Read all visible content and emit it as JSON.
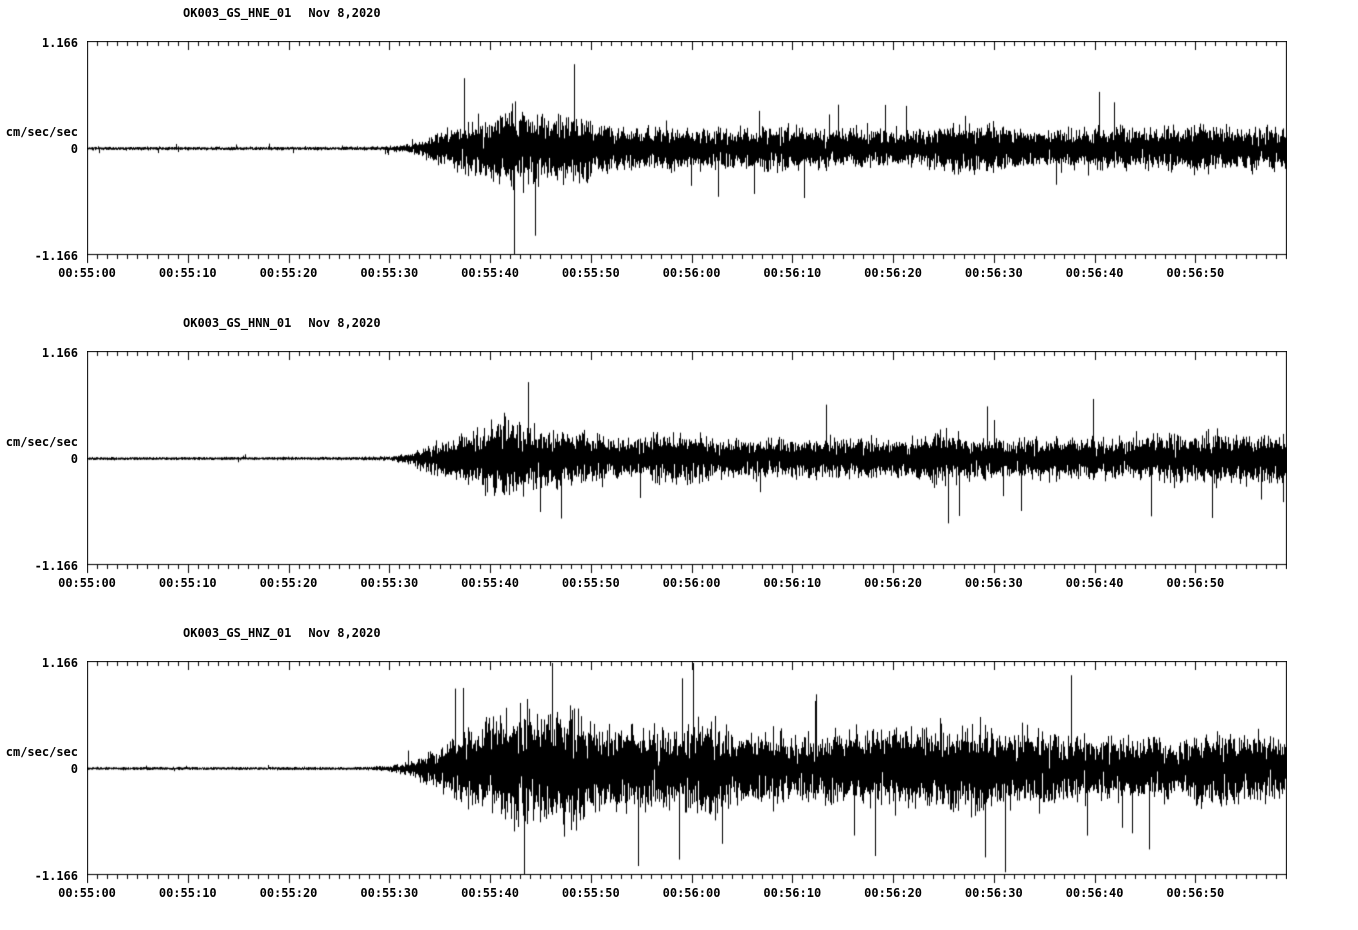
{
  "page": {
    "background": "#ffffff",
    "trace_color": "#000000"
  },
  "chart_data": [
    {
      "type": "line",
      "title": "OK003_GS_HNE_01",
      "date": "Nov 8,2020",
      "ylabel": "cm/sec/sec",
      "ylim": [
        -1.166,
        1.166
      ],
      "ytick_labels": [
        "1.166",
        "0",
        "-1.166"
      ],
      "xticks": [
        "00:55:00",
        "00:55:10",
        "00:55:20",
        "00:55:30",
        "00:55:40",
        "00:55:50",
        "00:56:00",
        "00:56:10",
        "00:56:20",
        "00:56:30",
        "00:56:40",
        "00:56:50"
      ],
      "duration_s": 119,
      "major_tick_s": 10,
      "minor_tick_s": 1,
      "envelope_step_s": 2,
      "seed": 42,
      "envelope": [
        0.025,
        0.025,
        0.025,
        0.025,
        0.025,
        0.025,
        0.025,
        0.025,
        0.025,
        0.025,
        0.025,
        0.025,
        0.025,
        0.025,
        0.028,
        0.035,
        0.06,
        0.18,
        0.3,
        0.38,
        0.5,
        0.55,
        0.48,
        0.42,
        0.55,
        0.38,
        0.33,
        0.3,
        0.3,
        0.32,
        0.3,
        0.28,
        0.3,
        0.28,
        0.3,
        0.32,
        0.28,
        0.27,
        0.28,
        0.28,
        0.3,
        0.27,
        0.28,
        0.35,
        0.38,
        0.35,
        0.3,
        0.28,
        0.3,
        0.28,
        0.3,
        0.3,
        0.32,
        0.3,
        0.33,
        0.35,
        0.33,
        0.3,
        0.32,
        0.3
      ]
    },
    {
      "type": "line",
      "title": "OK003_GS_HNN_01",
      "date": "Nov 8,2020",
      "ylabel": "cm/sec/sec",
      "ylim": [
        -1.166,
        1.166
      ],
      "ytick_labels": [
        "1.166",
        "0",
        "-1.166"
      ],
      "xticks": [
        "00:55:00",
        "00:55:10",
        "00:55:20",
        "00:55:30",
        "00:55:40",
        "00:55:50",
        "00:56:00",
        "00:56:10",
        "00:56:20",
        "00:56:30",
        "00:56:40",
        "00:56:50"
      ],
      "duration_s": 119,
      "major_tick_s": 10,
      "minor_tick_s": 1,
      "envelope_step_s": 2,
      "seed": 1337,
      "envelope": [
        0.022,
        0.022,
        0.022,
        0.022,
        0.022,
        0.022,
        0.022,
        0.022,
        0.022,
        0.022,
        0.022,
        0.022,
        0.022,
        0.022,
        0.026,
        0.032,
        0.08,
        0.22,
        0.3,
        0.35,
        0.5,
        0.55,
        0.45,
        0.4,
        0.38,
        0.35,
        0.3,
        0.28,
        0.3,
        0.35,
        0.35,
        0.3,
        0.3,
        0.28,
        0.28,
        0.28,
        0.27,
        0.28,
        0.27,
        0.28,
        0.28,
        0.3,
        0.4,
        0.35,
        0.3,
        0.3,
        0.28,
        0.28,
        0.3,
        0.28,
        0.3,
        0.3,
        0.32,
        0.33,
        0.35,
        0.35,
        0.38,
        0.35,
        0.33,
        0.35
      ]
    },
    {
      "type": "line",
      "title": "OK003_GS_HNZ_01",
      "date": "Nov 8,2020",
      "ylabel": "cm/sec/sec",
      "ylim": [
        -1.166,
        1.166
      ],
      "ytick_labels": [
        "1.166",
        "0",
        "-1.166"
      ],
      "xticks": [
        "00:55:00",
        "00:55:10",
        "00:55:20",
        "00:55:30",
        "00:55:40",
        "00:55:50",
        "00:56:00",
        "00:56:10",
        "00:56:20",
        "00:56:30",
        "00:56:40",
        "00:56:50"
      ],
      "duration_s": 119,
      "major_tick_s": 10,
      "minor_tick_s": 1,
      "envelope_step_s": 2,
      "seed": 2020,
      "envelope": [
        0.022,
        0.022,
        0.022,
        0.022,
        0.022,
        0.022,
        0.022,
        0.022,
        0.022,
        0.022,
        0.022,
        0.022,
        0.022,
        0.022,
        0.028,
        0.04,
        0.1,
        0.25,
        0.4,
        0.55,
        0.7,
        0.75,
        0.8,
        0.75,
        0.78,
        0.65,
        0.6,
        0.62,
        0.55,
        0.55,
        0.6,
        0.7,
        0.55,
        0.55,
        0.5,
        0.5,
        0.48,
        0.5,
        0.55,
        0.55,
        0.6,
        0.55,
        0.6,
        0.6,
        0.6,
        0.6,
        0.55,
        0.55,
        0.5,
        0.48,
        0.45,
        0.45,
        0.42,
        0.45,
        0.42,
        0.5,
        0.55,
        0.5,
        0.45,
        0.48
      ]
    }
  ]
}
